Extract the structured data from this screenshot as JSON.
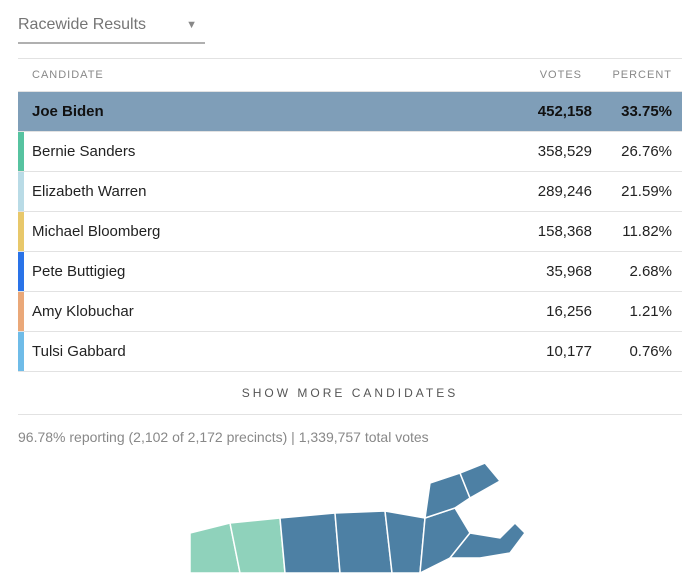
{
  "dropdown": {
    "label": "Racewide Results"
  },
  "headers": {
    "candidate": "CANDIDATE",
    "votes": "VOTES",
    "percent": "PERCENT"
  },
  "candidates": [
    {
      "name": "Joe Biden",
      "votes": "452,158",
      "percent": "33.75%",
      "color": "#7f9eb8",
      "row_bg": "#7f9eb8",
      "winner": true
    },
    {
      "name": "Bernie Sanders",
      "votes": "358,529",
      "percent": "26.76%",
      "color": "#57c3a0",
      "row_bg": "#ffffff",
      "winner": false
    },
    {
      "name": "Elizabeth Warren",
      "votes": "289,246",
      "percent": "21.59%",
      "color": "#b9dbe6",
      "row_bg": "#ffffff",
      "winner": false
    },
    {
      "name": "Michael Bloomberg",
      "votes": "158,368",
      "percent": "11.82%",
      "color": "#e8c86b",
      "row_bg": "#ffffff",
      "winner": false
    },
    {
      "name": "Pete Buttigieg",
      "votes": "35,968",
      "percent": "2.68%",
      "color": "#2a73e8",
      "row_bg": "#ffffff",
      "winner": false
    },
    {
      "name": "Amy Klobuchar",
      "votes": "16,256",
      "percent": "1.21%",
      "color": "#eaa879",
      "row_bg": "#ffffff",
      "winner": false
    },
    {
      "name": "Tulsi Gabbard",
      "votes": "10,177",
      "percent": "0.76%",
      "color": "#6fbce8",
      "row_bg": "#ffffff",
      "winner": false
    }
  ],
  "show_more": "SHOW MORE CANDIDATES",
  "reporting": "96.78% reporting (2,102 of 2,172 precincts)   |   1,339,757 total votes",
  "map": {
    "fill_primary": "#4d80a4",
    "fill_secondary": "#8fd2bb",
    "stroke": "#ffffff"
  }
}
